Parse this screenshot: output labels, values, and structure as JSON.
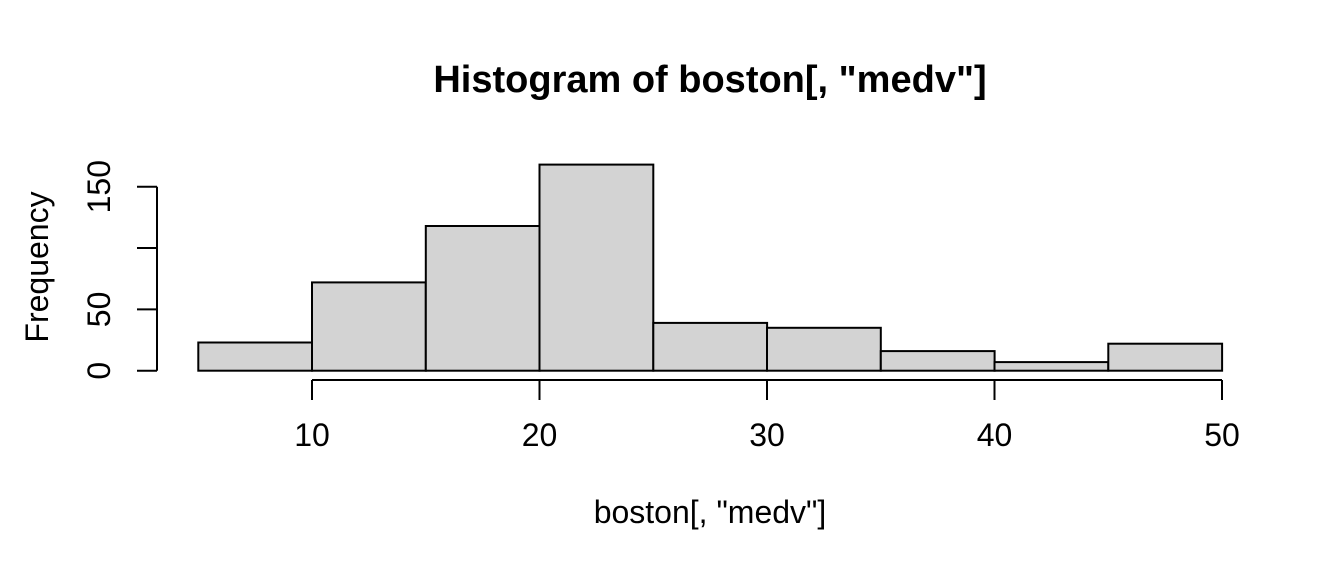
{
  "window": {
    "background": "#ffffff"
  },
  "chart_data": {
    "type": "bar",
    "subtype": "histogram",
    "title": "Histogram of boston[, \"medv\"]",
    "xlabel": "boston[, \"medv\"]",
    "ylabel": "Frequency",
    "bin_edges": [
      5,
      10,
      15,
      20,
      25,
      30,
      35,
      40,
      45,
      50
    ],
    "bin_width": 5,
    "values": [
      23,
      72,
      118,
      168,
      39,
      35,
      16,
      7,
      22
    ],
    "x_ticks": [
      10,
      20,
      30,
      40,
      50
    ],
    "x_tick_labels": [
      "10",
      "20",
      "30",
      "40",
      "50"
    ],
    "y_ticks": [
      0,
      50,
      100,
      150
    ],
    "y_tick_labels": [
      "0",
      "50",
      "",
      "150"
    ],
    "xlim": [
      5,
      50
    ],
    "ylim": [
      0,
      168
    ],
    "grid": false,
    "legend": false,
    "bar_fill": "#d3d3d3",
    "bar_stroke": "#000000",
    "axis_color": "#000000",
    "background": "#ffffff"
  }
}
